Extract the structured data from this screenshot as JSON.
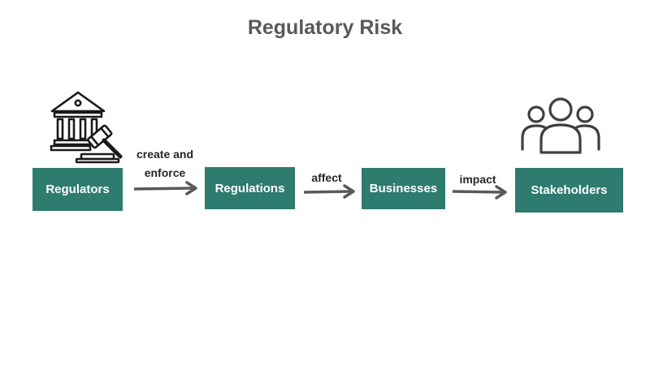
{
  "title": "Regulatory Risk",
  "colors": {
    "node_fill": "#2e7b70",
    "node_text": "#ffffff",
    "title_text": "#595959",
    "arrow": "#595959",
    "label_text": "#262626"
  },
  "nodes": [
    {
      "id": "regulators",
      "label": "Regulators",
      "icon": "courthouse-gavel-icon"
    },
    {
      "id": "regulations",
      "label": "Regulations"
    },
    {
      "id": "businesses",
      "label": "Businesses"
    },
    {
      "id": "stakeholders",
      "label": "Stakeholders",
      "icon": "people-group-icon"
    }
  ],
  "edges": [
    {
      "from": "regulators",
      "to": "regulations",
      "label_line1": "create and",
      "label_line2": "enforce"
    },
    {
      "from": "regulations",
      "to": "businesses",
      "label": "affect"
    },
    {
      "from": "businesses",
      "to": "stakeholders",
      "label": "impact"
    }
  ]
}
